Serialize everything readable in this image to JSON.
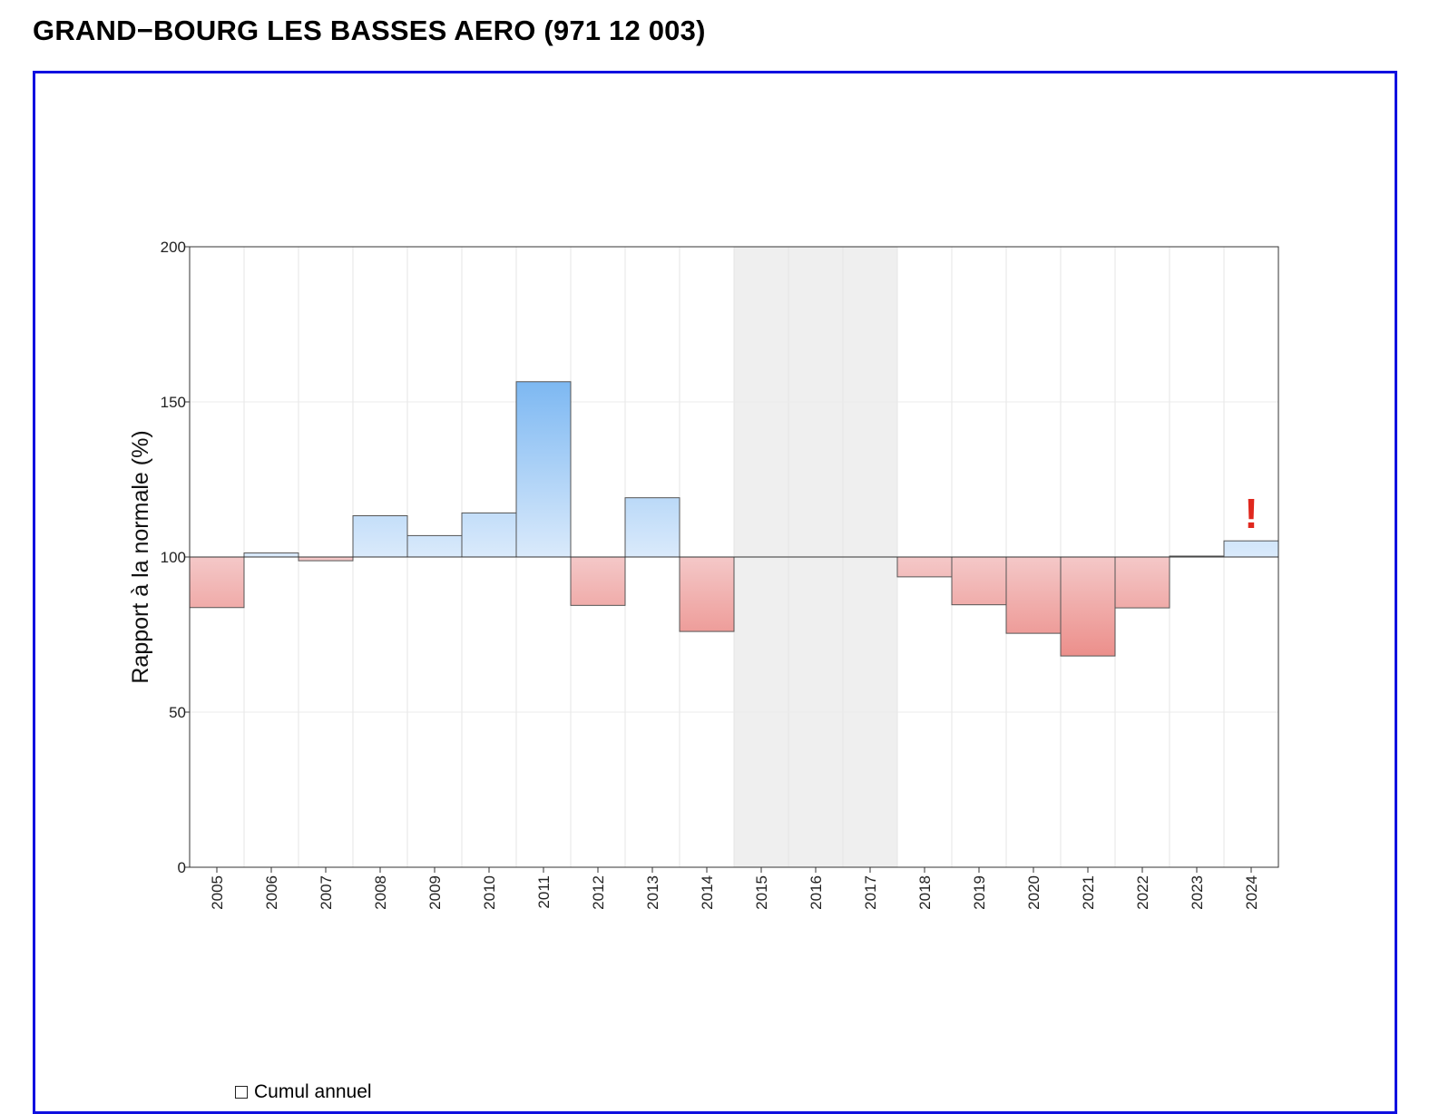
{
  "title": "GRAND−BOURG LES BASSES AERO (971 12 003)",
  "legend": {
    "checkbox_label": "Cumul annuel",
    "checked": false
  },
  "chart_data": {
    "type": "bar",
    "ylabel": "Rapport à la normale (%)",
    "ylim": [
      0,
      200
    ],
    "yticks": [
      0,
      50,
      100,
      150,
      200
    ],
    "baseline": 100,
    "grid": true,
    "categories": [
      "2005",
      "2006",
      "2007",
      "2008",
      "2009",
      "2010",
      "2011",
      "2012",
      "2013",
      "2014",
      "2015",
      "2016",
      "2017",
      "2018",
      "2019",
      "2020",
      "2021",
      "2022",
      "2023",
      "2024"
    ],
    "values": [
      83.7,
      101.3,
      98.8,
      113.3,
      106.9,
      114.2,
      156.5,
      84.4,
      119.1,
      76.0,
      null,
      null,
      null,
      93.6,
      84.6,
      75.4,
      68.1,
      83.6,
      100.3,
      105.2
    ],
    "missing_years": [
      "2015",
      "2016",
      "2017"
    ],
    "flag": {
      "category": "2024",
      "symbol": "!",
      "color": "#e0281e"
    },
    "colors": {
      "above_top": "#7db8f2",
      "above_base": "#daeafb",
      "below_top": "#f4c8c8",
      "below_deep": "#ec8f8b",
      "missing": "#efefef",
      "panel_border": "#1010e0"
    }
  }
}
